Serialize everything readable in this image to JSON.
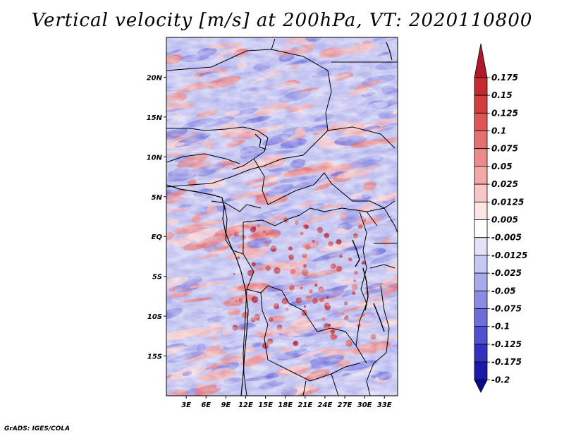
{
  "title": "Vertical velocity [m/s] at 200hPa, VT: 2020110800",
  "credit": "GrADS: IGES/COLA",
  "map": {
    "lon_range": [
      0,
      35
    ],
    "lat_range": [
      -20,
      25
    ],
    "lon_ticks": [
      "3E",
      "6E",
      "9E",
      "12E",
      "15E",
      "18E",
      "21E",
      "24E",
      "27E",
      "30E",
      "33E"
    ],
    "lon_tick_values": [
      3,
      6,
      9,
      12,
      15,
      18,
      21,
      24,
      27,
      30,
      33
    ],
    "lat_ticks": [
      "20N",
      "15N",
      "10N",
      "5N",
      "EQ",
      "5S",
      "10S",
      "15S"
    ],
    "lat_tick_values": [
      20,
      15,
      10,
      5,
      0,
      -5,
      -10,
      -15
    ]
  },
  "colorbar": {
    "labels": [
      "0.175",
      "0.15",
      "0.125",
      "0.1",
      "0.075",
      "0.05",
      "0.025",
      "0.0125",
      "0.005",
      "-0.005",
      "-0.0125",
      "-0.025",
      "-0.05",
      "-0.075",
      "-0.1",
      "-0.125",
      "-0.175",
      "-0.2"
    ],
    "colors": [
      "#b2182b",
      "#c42b30",
      "#d13e3e",
      "#dc5656",
      "#e57070",
      "#ec8b8b",
      "#f3a8a8",
      "#f8c8c8",
      "#fce4e4",
      "#ffffff",
      "#e2e2fa",
      "#c7c7f3",
      "#a9a9ec",
      "#8b8be3",
      "#6e6edb",
      "#5050d1",
      "#3232bf",
      "#1a1aa6",
      "#0b0b8c"
    ]
  }
}
